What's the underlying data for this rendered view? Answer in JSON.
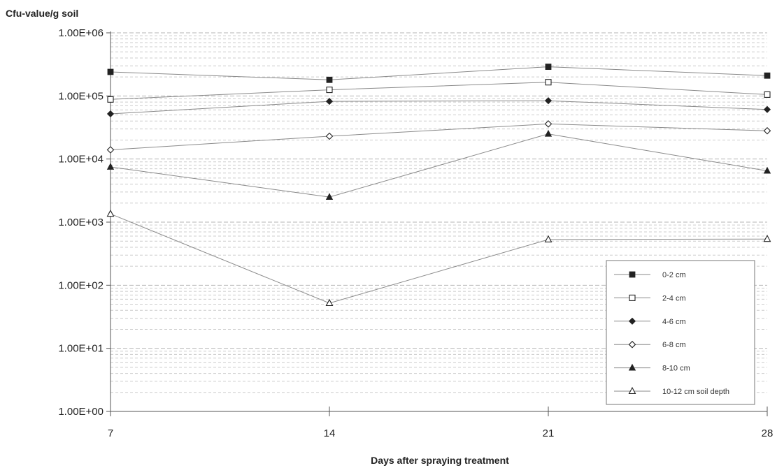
{
  "chart_data": {
    "type": "line",
    "ylabel": "Cfu-value/g soil",
    "xlabel": "Days after spraying treatment",
    "x": [
      7,
      14,
      21,
      28
    ],
    "x_tick_labels": [
      "7",
      "14",
      "21",
      "28"
    ],
    "y_scale": "log",
    "ylim": [
      1,
      1000000
    ],
    "y_tick_labels": [
      "1.00E+00",
      "1.00E+01",
      "1.00E+02",
      "1.00E+03",
      "1.00E+04",
      "1.00E+05",
      "1.00E+06"
    ],
    "grid": "dashed horizontal minor gridlines",
    "legend_position": "bottom-right",
    "series": [
      {
        "name": "0-2 cm",
        "marker": "filled-square",
        "values": [
          240000,
          180000,
          290000,
          210000
        ]
      },
      {
        "name": "2-4 cm",
        "marker": "open-square",
        "values": [
          88000,
          125000,
          165000,
          105000
        ]
      },
      {
        "name": "4-6 cm",
        "marker": "filled-diamond",
        "values": [
          52000,
          82000,
          84000,
          61000
        ]
      },
      {
        "name": "6-8 cm",
        "marker": "open-diamond",
        "values": [
          14000,
          23000,
          36000,
          28000
        ]
      },
      {
        "name": "8-10 cm",
        "marker": "filled-triangle",
        "values": [
          7500,
          2500,
          25000,
          6500
        ]
      },
      {
        "name": "10-12 cm soil depth",
        "marker": "open-triangle",
        "values": [
          1350,
          52,
          530,
          540
        ]
      }
    ],
    "colors": {
      "line": "#8a8a8a",
      "marker": "#222222",
      "grid": "#cccccc"
    }
  }
}
